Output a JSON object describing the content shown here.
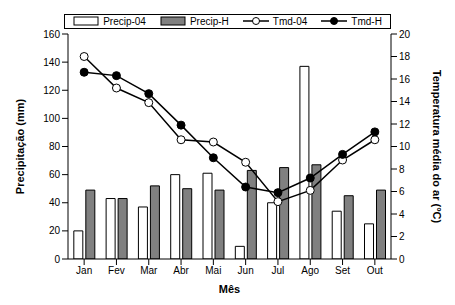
{
  "chart_data": {
    "type": "bar",
    "x_label": "Mês",
    "y_label": "Precipitação (mm)",
    "y2_label": "Temperatura média do ar (°C)",
    "categories": [
      "Jan",
      "Fev",
      "Mar",
      "Abr",
      "Mai",
      "Jun",
      "Jul",
      "Ago",
      "Set",
      "Out"
    ],
    "series": [
      {
        "name": "Precip-04",
        "type": "bar",
        "color": "#ffffff",
        "values": [
          20,
          43,
          37,
          60,
          61,
          9,
          40,
          137,
          34,
          25
        ]
      },
      {
        "name": "Precip-H",
        "type": "bar",
        "color": "#808080",
        "values": [
          49,
          43,
          52,
          50,
          49,
          63,
          65,
          67,
          45,
          49
        ]
      },
      {
        "name": "Tmd-04",
        "type": "line",
        "axis": "y2",
        "color": "#000000",
        "marker": "open_circle",
        "values": [
          18,
          15.2,
          13.9,
          10.6,
          10.4,
          8.6,
          5.1,
          6.1,
          8.8,
          10.6
        ]
      },
      {
        "name": "Tmd-H",
        "type": "line",
        "axis": "y2",
        "color": "#000000",
        "marker": "circle",
        "values": [
          16.6,
          16.3,
          14.7,
          11.9,
          9.0,
          6.4,
          5.9,
          7.2,
          9.3,
          11.3
        ]
      }
    ],
    "ylim": [
      0,
      160
    ],
    "yticks": [
      0,
      20,
      40,
      60,
      80,
      100,
      120,
      140,
      160
    ],
    "y2lim": [
      0,
      20
    ],
    "y2ticks": [
      0,
      2,
      4,
      6,
      8,
      10,
      12,
      14,
      16,
      18,
      20
    ],
    "grid": false,
    "legend": "top"
  }
}
